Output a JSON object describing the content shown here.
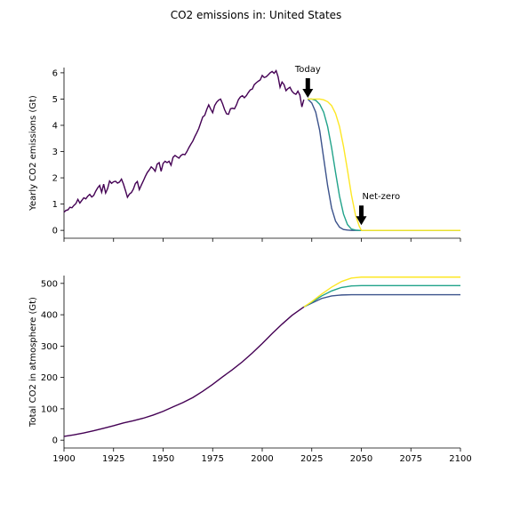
{
  "title": "CO2 emissions in: United States",
  "chart_data": [
    {
      "type": "line",
      "ylabel": "Yearly CO2 emissions (Gt)",
      "xlim": [
        1900,
        2100
      ],
      "ylim": [
        -0.3,
        6.2
      ],
      "yticks": [
        0,
        1,
        2,
        3,
        4,
        5,
        6
      ],
      "annotations": [
        {
          "text": "Today",
          "x": 2023,
          "y": 5.05
        },
        {
          "text": "Net-zero",
          "x": 2050,
          "y": 0.2
        }
      ],
      "historical": {
        "x": [
          1900,
          1901,
          1902,
          1903,
          1904,
          1905,
          1906,
          1907,
          1908,
          1909,
          1910,
          1911,
          1912,
          1913,
          1914,
          1915,
          1916,
          1917,
          1918,
          1919,
          1920,
          1921,
          1922,
          1923,
          1924,
          1925,
          1926,
          1927,
          1928,
          1929,
          1930,
          1931,
          1932,
          1933,
          1934,
          1935,
          1936,
          1937,
          1938,
          1939,
          1940,
          1941,
          1942,
          1943,
          1944,
          1945,
          1946,
          1947,
          1948,
          1949,
          1950,
          1951,
          1952,
          1953,
          1954,
          1955,
          1956,
          1957,
          1958,
          1959,
          1960,
          1961,
          1962,
          1963,
          1964,
          1965,
          1966,
          1967,
          1968,
          1969,
          1970,
          1971,
          1972,
          1973,
          1974,
          1975,
          1976,
          1977,
          1978,
          1979,
          1980,
          1981,
          1982,
          1983,
          1984,
          1985,
          1986,
          1987,
          1988,
          1989,
          1990,
          1991,
          1992,
          1993,
          1994,
          1995,
          1996,
          1997,
          1998,
          1999,
          2000,
          2001,
          2002,
          2003,
          2004,
          2005,
          2006,
          2007,
          2008,
          2009,
          2010,
          2011,
          2012,
          2013,
          2014,
          2015,
          2016,
          2017,
          2018,
          2019,
          2020,
          2021
        ],
        "y": [
          0.69,
          0.76,
          0.78,
          0.88,
          0.86,
          0.95,
          1.02,
          1.18,
          1.04,
          1.14,
          1.24,
          1.2,
          1.3,
          1.37,
          1.27,
          1.33,
          1.49,
          1.62,
          1.71,
          1.45,
          1.76,
          1.42,
          1.59,
          1.88,
          1.79,
          1.85,
          1.87,
          1.8,
          1.84,
          1.95,
          1.76,
          1.52,
          1.26,
          1.38,
          1.44,
          1.57,
          1.78,
          1.86,
          1.55,
          1.72,
          1.88,
          2.05,
          2.2,
          2.3,
          2.42,
          2.35,
          2.25,
          2.52,
          2.58,
          2.25,
          2.55,
          2.63,
          2.58,
          2.63,
          2.48,
          2.78,
          2.85,
          2.8,
          2.75,
          2.85,
          2.9,
          2.88,
          3.0,
          3.15,
          3.28,
          3.4,
          3.57,
          3.72,
          3.88,
          4.1,
          4.32,
          4.38,
          4.6,
          4.78,
          4.62,
          4.48,
          4.75,
          4.88,
          4.96,
          5.0,
          4.82,
          4.6,
          4.44,
          4.42,
          4.63,
          4.65,
          4.63,
          4.78,
          4.98,
          5.08,
          5.13,
          5.05,
          5.13,
          5.25,
          5.35,
          5.38,
          5.55,
          5.62,
          5.68,
          5.73,
          5.9,
          5.82,
          5.85,
          5.92,
          6.0,
          6.05,
          5.98,
          6.08,
          5.85,
          5.45,
          5.65,
          5.55,
          5.32,
          5.4,
          5.45,
          5.3,
          5.22,
          5.18,
          5.3,
          5.15,
          4.7,
          4.98
        ]
      },
      "scenarios": [
        {
          "color": "#3b528b",
          "x": [
            2023,
            2025,
            2027,
            2029,
            2031,
            2033,
            2035,
            2037,
            2039,
            2041,
            2043,
            2045,
            2047,
            2049,
            2050,
            2060,
            2070,
            2080,
            2090,
            2100
          ],
          "y": [
            5.0,
            4.85,
            4.5,
            3.8,
            2.75,
            1.7,
            0.85,
            0.35,
            0.12,
            0.03,
            0.01,
            0,
            0,
            0,
            0,
            0,
            0,
            0,
            0,
            0
          ]
        },
        {
          "color": "#21a38a",
          "x": [
            2023,
            2025,
            2027,
            2029,
            2031,
            2033,
            2035,
            2037,
            2039,
            2041,
            2043,
            2045,
            2047,
            2049,
            2050,
            2060,
            2070,
            2080,
            2090,
            2100
          ],
          "y": [
            5.0,
            5.0,
            4.95,
            4.8,
            4.5,
            3.95,
            3.15,
            2.2,
            1.3,
            0.62,
            0.22,
            0.05,
            0.01,
            0,
            0,
            0,
            0,
            0,
            0,
            0
          ]
        },
        {
          "color": "#fde725",
          "x": [
            2023,
            2025,
            2027,
            2029,
            2031,
            2033,
            2035,
            2037,
            2039,
            2041,
            2043,
            2045,
            2047,
            2049,
            2050,
            2060,
            2070,
            2080,
            2090,
            2100
          ],
          "y": [
            5.0,
            5.0,
            5.0,
            5.0,
            4.97,
            4.9,
            4.75,
            4.45,
            3.95,
            3.2,
            2.3,
            1.35,
            0.6,
            0.15,
            0.0,
            0,
            0,
            0,
            0,
            0
          ]
        }
      ],
      "line_color": "#440154"
    },
    {
      "type": "line",
      "ylabel": "Total CO2 in atmosphere (Gt)",
      "xlim": [
        1900,
        2100
      ],
      "ylim": [
        -25,
        525
      ],
      "yticks": [
        0,
        100,
        200,
        300,
        400,
        500
      ],
      "xticks": [
        1900,
        1925,
        1950,
        1975,
        2000,
        2025,
        2050,
        2075,
        2100
      ],
      "historical": {
        "x": [
          1900,
          1905,
          1910,
          1915,
          1920,
          1925,
          1930,
          1935,
          1940,
          1945,
          1950,
          1955,
          1960,
          1965,
          1970,
          1975,
          1980,
          1985,
          1990,
          1995,
          2000,
          2005,
          2010,
          2015,
          2021
        ],
        "y": [
          12,
          17,
          23,
          30,
          38,
          46,
          55,
          62,
          70,
          80,
          92,
          106,
          120,
          136,
          156,
          178,
          202,
          225,
          250,
          278,
          308,
          340,
          370,
          398,
          425
        ]
      },
      "scenarios": [
        {
          "color": "#3b528b",
          "x": [
            2021,
            2025,
            2030,
            2035,
            2040,
            2045,
            2050,
            2060,
            2070,
            2080,
            2090,
            2100
          ],
          "y": [
            425,
            437,
            452,
            460,
            463,
            464,
            464,
            464,
            464,
            464,
            464,
            464
          ]
        },
        {
          "color": "#21a38a",
          "x": [
            2021,
            2025,
            2030,
            2035,
            2040,
            2045,
            2050,
            2060,
            2070,
            2080,
            2090,
            2100
          ],
          "y": [
            425,
            440,
            460,
            476,
            487,
            492,
            493,
            493,
            493,
            493,
            493,
            493
          ]
        },
        {
          "color": "#fde725",
          "x": [
            2021,
            2025,
            2030,
            2035,
            2040,
            2045,
            2050,
            2060,
            2070,
            2080,
            2090,
            2100
          ],
          "y": [
            425,
            442,
            466,
            488,
            506,
            517,
            520,
            520,
            520,
            520,
            520,
            520
          ]
        }
      ],
      "line_color": "#440154"
    }
  ]
}
